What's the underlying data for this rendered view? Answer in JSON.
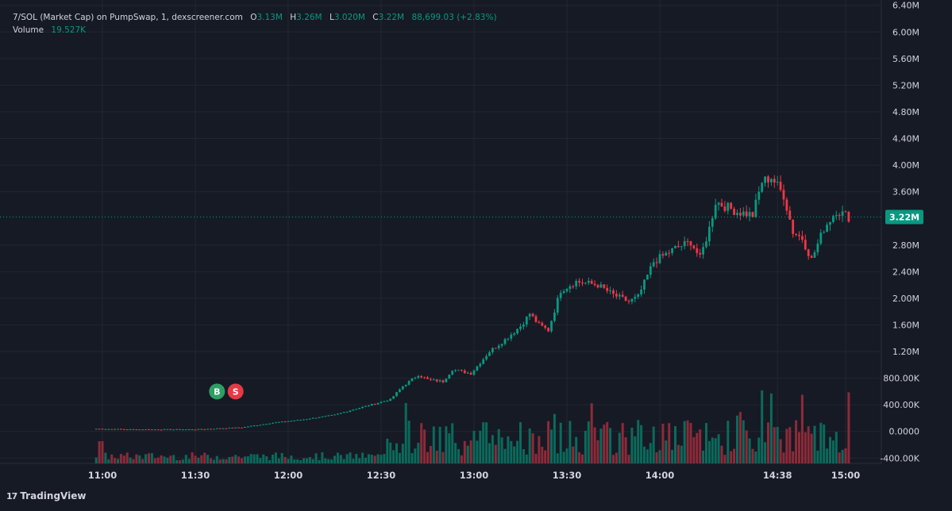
{
  "chart_data": {
    "type": "candlestick",
    "title": "7/SOL (Market Cap) on PumpSwap, 1, dexscreener.com",
    "ohlc": {
      "o_label": "O",
      "o": "3.13M",
      "h_label": "H",
      "h": "3.26M",
      "l_label": "L",
      "l": "3.020M",
      "c_label": "C",
      "c": "3.22M",
      "change": "88,699.03 (+2.83%)"
    },
    "volume_label": "Volume",
    "volume_value": "19.527K",
    "last_price_label": "3.22M",
    "last_price": 3.22,
    "ylim": [
      -0.48,
      6.48
    ],
    "y_ticks": [
      {
        "v": 6.4,
        "label": "6.40M"
      },
      {
        "v": 6.0,
        "label": "6.00M"
      },
      {
        "v": 5.6,
        "label": "5.60M"
      },
      {
        "v": 5.2,
        "label": "5.20M"
      },
      {
        "v": 4.8,
        "label": "4.80M"
      },
      {
        "v": 4.4,
        "label": "4.40M"
      },
      {
        "v": 4.0,
        "label": "4.00M"
      },
      {
        "v": 3.6,
        "label": "3.60M"
      },
      {
        "v": 2.8,
        "label": "2.80M"
      },
      {
        "v": 2.4,
        "label": "2.40M"
      },
      {
        "v": 2.0,
        "label": "2.00M"
      },
      {
        "v": 1.6,
        "label": "1.60M"
      },
      {
        "v": 1.2,
        "label": "1.20M"
      },
      {
        "v": 0.8,
        "label": "800.00K"
      },
      {
        "v": 0.4,
        "label": "400.00K"
      },
      {
        "v": 0.0,
        "label": "0.0000"
      },
      {
        "v": -0.4,
        "label": "-400.00K"
      }
    ],
    "x_ticks": [
      {
        "min": 0,
        "label": "11:00"
      },
      {
        "min": 30,
        "label": "11:30"
      },
      {
        "min": 60,
        "label": "12:00"
      },
      {
        "min": 90,
        "label": "12:30"
      },
      {
        "min": 120,
        "label": "13:00"
      },
      {
        "min": 150,
        "label": "13:30"
      },
      {
        "min": 180,
        "label": "14:00"
      },
      {
        "min": 218,
        "label": "14:38"
      },
      {
        "min": 240,
        "label": "15:00"
      }
    ],
    "anchors": [
      [
        -2,
        0.04
      ],
      [
        10,
        0.03
      ],
      [
        20,
        0.03
      ],
      [
        30,
        0.03
      ],
      [
        45,
        0.06
      ],
      [
        55,
        0.13
      ],
      [
        65,
        0.18
      ],
      [
        75,
        0.25
      ],
      [
        85,
        0.38
      ],
      [
        93,
        0.48
      ],
      [
        97,
        0.68
      ],
      [
        102,
        0.85
      ],
      [
        105,
        0.78
      ],
      [
        110,
        0.75
      ],
      [
        113,
        0.93
      ],
      [
        119,
        0.87
      ],
      [
        125,
        1.2
      ],
      [
        130,
        1.38
      ],
      [
        135,
        1.58
      ],
      [
        138,
        1.77
      ],
      [
        141,
        1.6
      ],
      [
        144,
        1.52
      ],
      [
        148,
        2.12
      ],
      [
        153,
        2.25
      ],
      [
        160,
        2.2
      ],
      [
        165,
        2.05
      ],
      [
        170,
        1.95
      ],
      [
        173,
        2.02
      ],
      [
        178,
        2.55
      ],
      [
        185,
        2.75
      ],
      [
        190,
        2.85
      ],
      [
        193,
        2.6
      ],
      [
        196,
        3.05
      ],
      [
        198,
        3.45
      ],
      [
        205,
        3.3
      ],
      [
        210,
        3.25
      ],
      [
        213,
        3.75
      ],
      [
        216,
        3.82
      ],
      [
        220,
        3.55
      ],
      [
        223,
        3.0
      ],
      [
        226,
        2.9
      ],
      [
        229,
        2.58
      ],
      [
        233,
        3.05
      ],
      [
        237,
        3.32
      ],
      [
        241,
        3.22
      ]
    ],
    "markers": [
      {
        "label": "B",
        "kind": "buy",
        "min": 37,
        "v": 0.6
      },
      {
        "label": "S",
        "kind": "sell",
        "min": 43,
        "v": 0.6
      }
    ],
    "colors": {
      "background": "#161a25",
      "grid": "#222632",
      "up": "#089981",
      "down": "#f23645",
      "up_volume": "#0b6a5c",
      "down_volume": "#8e2a38",
      "text": "#d1d4dc",
      "buy_marker": "#2e9e64",
      "sell_marker": "#e53945",
      "price_line": "#089981"
    }
  },
  "branding": {
    "logo": "17",
    "name": "TradingView"
  }
}
